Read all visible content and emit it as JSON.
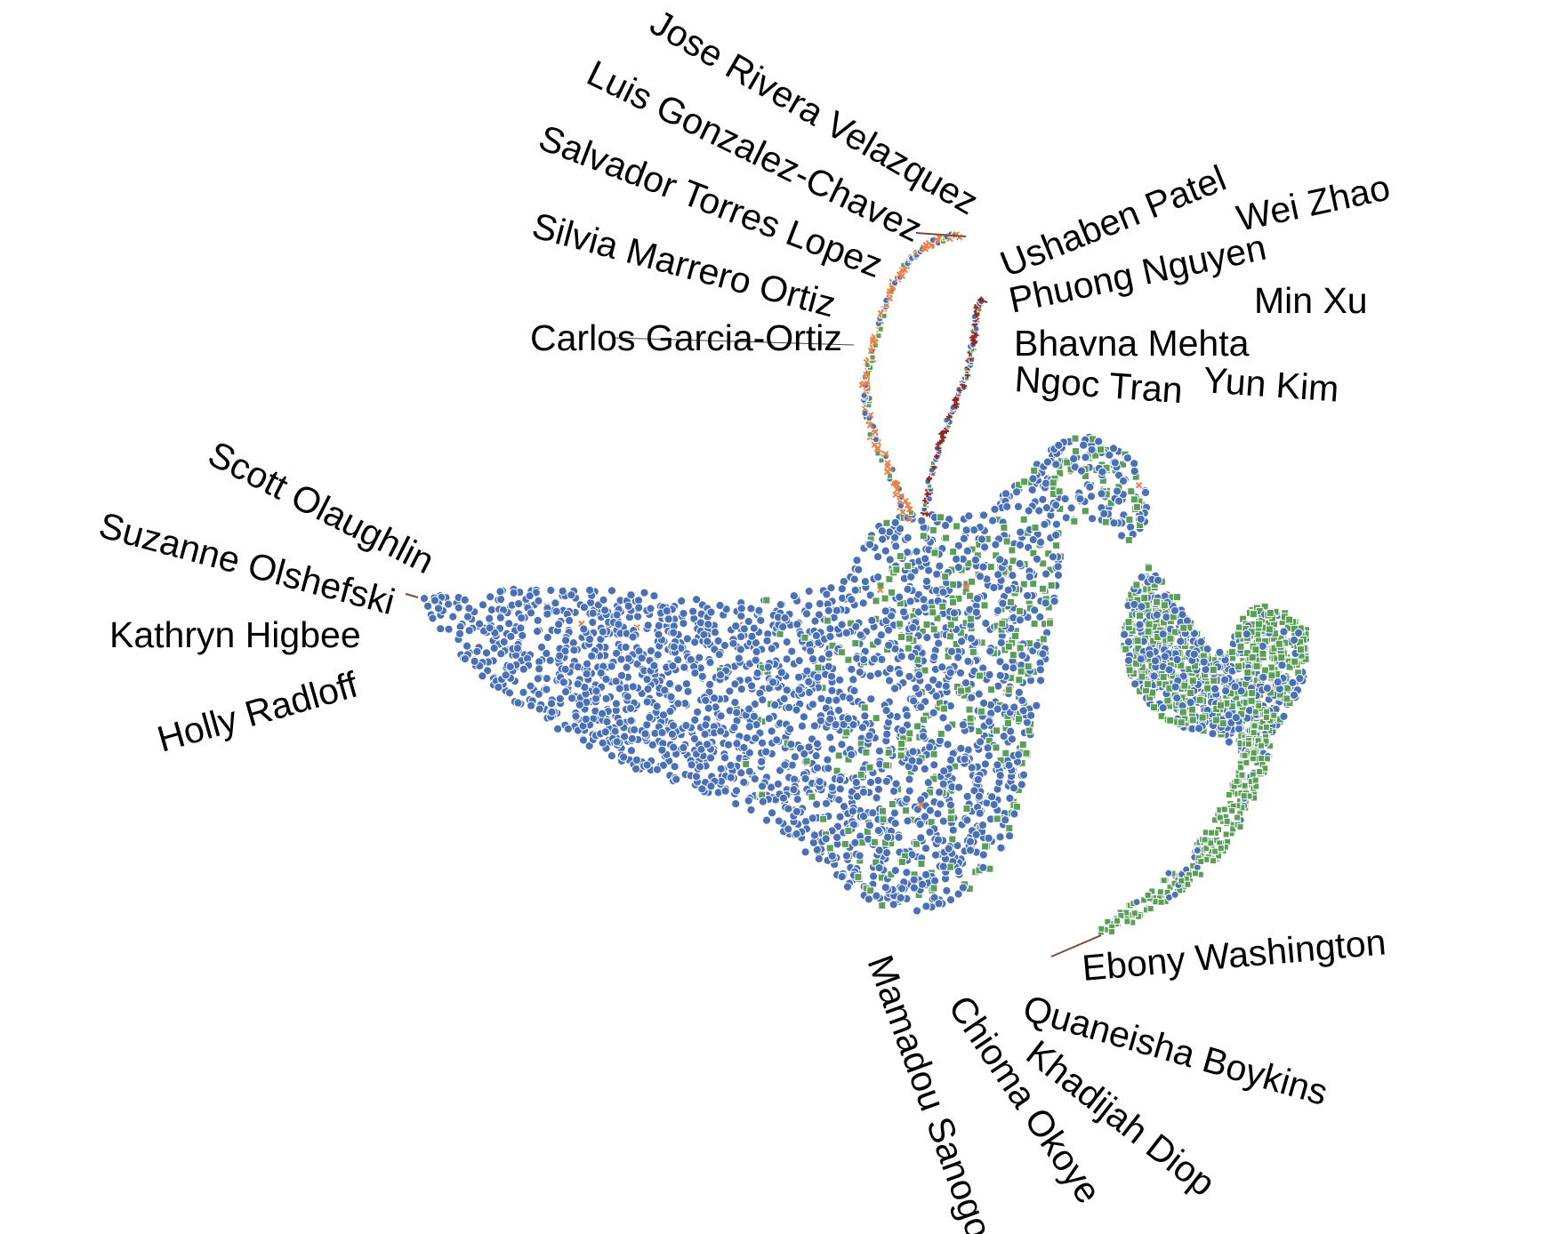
{
  "chart_data": {
    "type": "scatter",
    "title": "",
    "xlabel": "",
    "ylabel": "",
    "grid": false,
    "legend": "none",
    "colors": {
      "blue_circle": "#4a70b5",
      "green_square": "#5a9e58",
      "orange_x": "#e8824a",
      "brown_plus": "#8e2a2a",
      "point_edge": "#ffffff",
      "leader_line": "#7a4a3a"
    },
    "series": [
      {
        "name": "circle group",
        "marker": "circle",
        "color": "#4a70b5"
      },
      {
        "name": "square group",
        "marker": "square",
        "color": "#5a9e58"
      },
      {
        "name": "x group",
        "marker": "x",
        "color": "#e8824a"
      },
      {
        "name": "plus group",
        "marker": "plus",
        "color": "#8e2a2a"
      }
    ],
    "name_groups": [
      {
        "region": "upper-left arm",
        "names": [
          "Jose Rivera Velazquez",
          "Luis Gonzalez-Chavez",
          "Salvador Torres Lopez",
          "Silvia Marrero Ortiz",
          "Carlos Garcia-Ortiz"
        ]
      },
      {
        "region": "upper-right arm",
        "names": [
          "Ushaben Patel",
          "Wei Zhao",
          "Phuong Nguyen",
          "Min Xu",
          "Bhavna Mehta",
          "Ngoc Tran",
          "Yun Kim"
        ]
      },
      {
        "region": "left tip",
        "names": [
          "Scott Olaughlin",
          "Suzanne Olshefski",
          "Kathryn Higbee",
          "Holly Radloff"
        ]
      },
      {
        "region": "lower-right tail",
        "names": [
          "Ebony Washington",
          "Quaneisha Boykins",
          "Khadijah Diop",
          "Chioma Okoye",
          "Mamadou Sanogo"
        ]
      }
    ]
  }
}
